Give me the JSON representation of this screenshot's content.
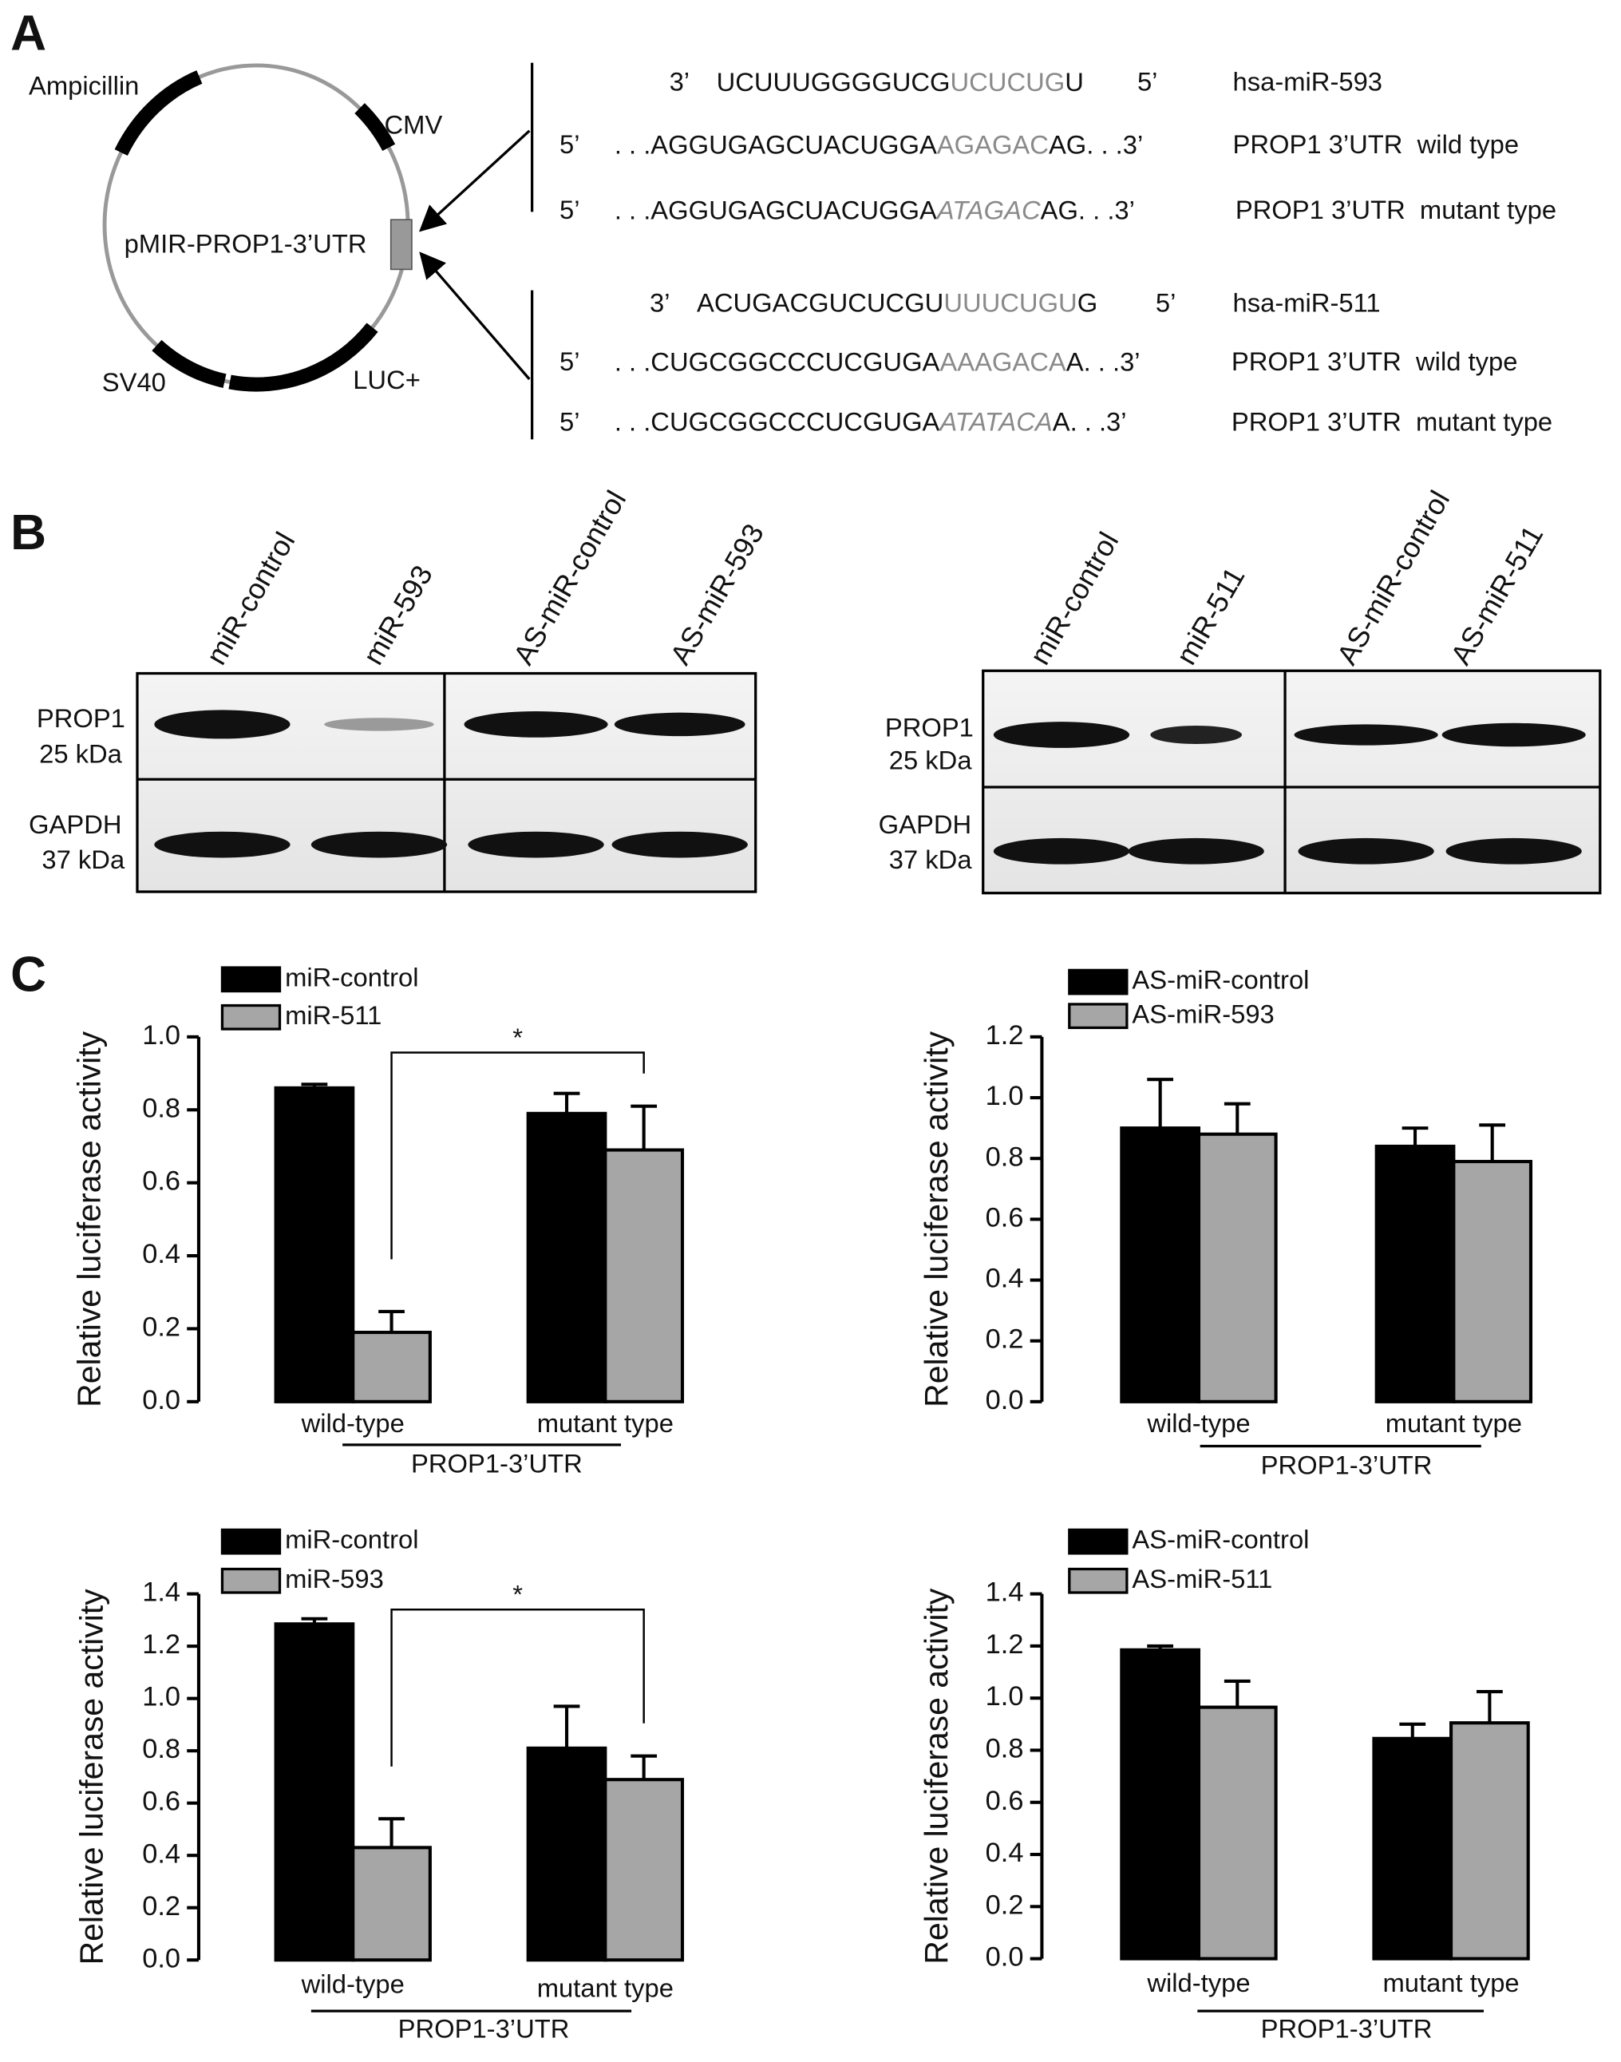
{
  "panel_labels": [
    "A",
    "B",
    "C"
  ],
  "panel_a": {
    "plasmid": {
      "name": "pMIR-PROP1-3’UTR",
      "elements": [
        "Ampicillin",
        "CMV",
        "SV40",
        "LUC+"
      ]
    },
    "sequences": [
      {
        "left": "3’",
        "pre": "UCUUUGGGGUCG",
        "site": "UCUCUG",
        "post": "U",
        "right": "5’",
        "name": "hsa-miR-593"
      },
      {
        "left": "5’",
        "pre": ". . .AGGUGAGCUACUGGA",
        "site": "AGAGAC",
        "post": "AG. . .3’",
        "name": "PROP1 3’UTR  wild type"
      },
      {
        "left": "5’",
        "pre": ". . .AGGUGAGCUACUGGA",
        "site": "ATAGAC",
        "post": "AG. . .3’",
        "name": "PROP1 3’UTR  mutant type"
      },
      {
        "left": "3’",
        "pre": "ACUGACGUCUCGU",
        "site": "UUUCUGU",
        "post": "G",
        "right": "5’",
        "name": "hsa-miR-511"
      },
      {
        "left": "5’",
        "pre": ". . .CUGCGGCCCUCGUGA",
        "site": "AAAGACA",
        "post": "A. . .3’",
        "name": "PROP1 3’UTR  wild type"
      },
      {
        "left": "5’",
        "pre": ". . .CUGCGGCCCUCGUGA",
        "site": "ATATACA",
        "post": "A. . .3’",
        "name": "PROP1 3’UTR  mutant type"
      }
    ]
  },
  "panel_b": {
    "blots": [
      {
        "lanes": [
          "miR-control",
          "miR-593",
          "AS-miR-control",
          "AS-miR-593"
        ],
        "rows": [
          {
            "protein": "PROP1",
            "size": "25 kDa"
          },
          {
            "protein": "GAPDH",
            "size": "37 kDa"
          }
        ]
      },
      {
        "lanes": [
          "miR-control",
          "miR-511",
          "AS-miR-control",
          "AS-miR-511"
        ],
        "rows": [
          {
            "protein": "PROP1",
            "size": "25 kDa"
          },
          {
            "protein": "GAPDH",
            "size": "37 kDa"
          }
        ]
      }
    ]
  },
  "chart_data": [
    {
      "type": "bar",
      "y_label": "Relative luciferase activity",
      "categories": [
        "wild-type",
        "mutant type"
      ],
      "group_label": "PROP1-3’UTR",
      "series": [
        {
          "name": "miR-control",
          "color": "#000000",
          "values": [
            0.86,
            0.79
          ],
          "errors": [
            0.01,
            0.055
          ]
        },
        {
          "name": "miR-511",
          "color": "#a6a6a6",
          "values": [
            0.19,
            0.69
          ],
          "errors": [
            0.057,
            0.12
          ]
        }
      ],
      "ylim": [
        0,
        1.0
      ],
      "yticks": [
        {
          "value": 0,
          "label": "0.0"
        },
        0.2,
        0.4,
        0.6,
        0.8,
        {
          "value": 1.0,
          "label": "1.0"
        }
      ],
      "annotation": "*"
    },
    {
      "type": "bar",
      "y_label": "Relative luciferase activity",
      "categories": [
        "wild-type",
        "mutant type"
      ],
      "group_label": "PROP1-3’UTR",
      "series": [
        {
          "name": "AS-miR-control",
          "color": "#000000",
          "values": [
            0.9,
            0.84
          ],
          "errors": [
            0.16,
            0.06
          ]
        },
        {
          "name": "AS-miR-593",
          "color": "#a6a6a6",
          "values": [
            0.88,
            0.79
          ],
          "errors": [
            0.1,
            0.12
          ]
        }
      ],
      "ylim": [
        0,
        1.2
      ],
      "yticks": [
        {
          "value": 0,
          "label": "0.0"
        },
        0.2,
        0.4,
        0.6,
        0.8,
        {
          "value": 1.0,
          "label": "1.0"
        },
        1.2
      ]
    },
    {
      "type": "bar",
      "y_label": "Relative luciferase activity",
      "categories": [
        "wild-type",
        "mutant type"
      ],
      "group_label": "PROP1-3’UTR",
      "series": [
        {
          "name": "miR-control",
          "color": "#000000",
          "values": [
            1.285,
            0.81
          ],
          "errors": [
            0.02,
            0.16
          ]
        },
        {
          "name": "miR-593",
          "color": "#a6a6a6",
          "values": [
            0.43,
            0.69
          ],
          "errors": [
            0.11,
            0.09
          ]
        }
      ],
      "ylim": [
        0,
        1.4
      ],
      "yticks": [
        {
          "value": 0,
          "label": "0.0"
        },
        0.2,
        0.4,
        0.6,
        0.8,
        {
          "value": 1.0,
          "label": "1.0"
        },
        1.2,
        1.4
      ],
      "annotation": "*"
    },
    {
      "type": "bar",
      "y_label": "Relative luciferase activity",
      "categories": [
        "wild-type",
        "mutant type"
      ],
      "group_label": "PROP1-3’UTR",
      "series": [
        {
          "name": "AS-miR-control",
          "color": "#000000",
          "values": [
            1.185,
            0.845
          ],
          "errors": [
            0.015,
            0.055
          ]
        },
        {
          "name": "AS-miR-511",
          "color": "#a6a6a6",
          "values": [
            0.965,
            0.905
          ],
          "errors": [
            0.1,
            0.12
          ]
        }
      ],
      "ylim": [
        0,
        1.4
      ],
      "yticks": [
        {
          "value": 0,
          "label": "0.0"
        },
        0.2,
        0.4,
        0.6,
        0.8,
        {
          "value": 1.0,
          "label": "1.0"
        },
        1.2,
        1.4
      ]
    }
  ]
}
